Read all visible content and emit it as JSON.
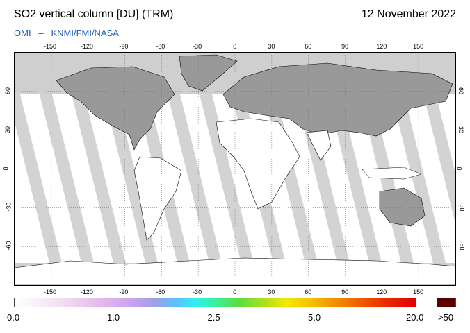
{
  "header": {
    "title": "SO2 vertical column [DU] (TRM)",
    "date": "12 November 2022",
    "source": "OMI   –   KNMI/FMI/NASA"
  },
  "map": {
    "projection": "equirectangular",
    "lon_range": [
      -180,
      180
    ],
    "lat_range": [
      -90,
      90
    ],
    "lon_ticks": [
      "-150",
      "-120",
      "-90",
      "-60",
      "-30",
      "0",
      "30",
      "60",
      "90",
      "120",
      "150"
    ],
    "lat_ticks": [
      "60",
      "30",
      "0",
      "-30",
      "-60"
    ],
    "grid": "dotted",
    "colors": {
      "no_data": "#cfcfcf",
      "swath_gap": "#d3d3d3",
      "land_no_data": "#999999",
      "background": "#ffffff",
      "coastline": "#000000"
    }
  },
  "colorbar": {
    "tick_labels": [
      "0.0",
      "1.0",
      "2.5",
      "5.0",
      "20.0"
    ],
    "overflow_label": ">50",
    "overflow_color": "#5a0000"
  }
}
